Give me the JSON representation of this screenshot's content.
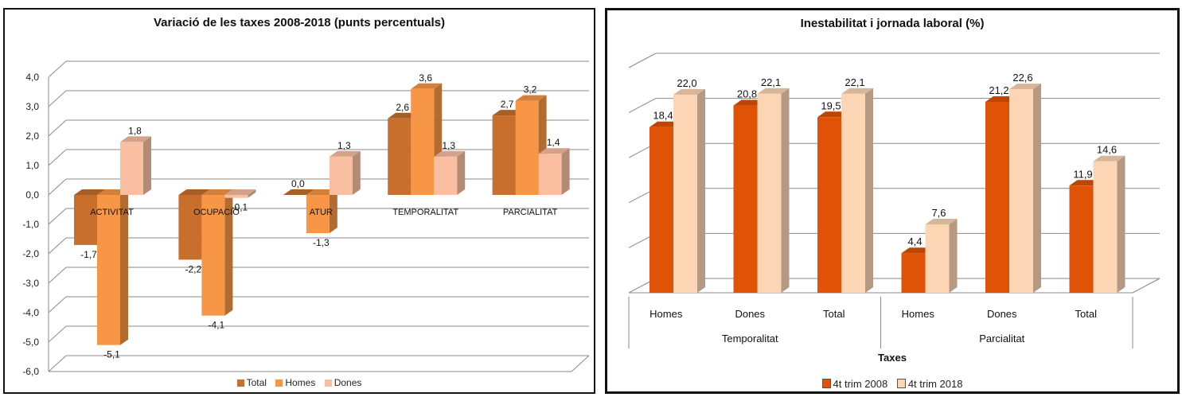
{
  "chart_data": [
    {
      "type": "bar",
      "title": "Variació de les taxes 2008-2018 (punts percentuals)",
      "categories": [
        "ACTIVITAT",
        "OCUPACIÓ",
        "ATUR",
        "TEMPORALITAT",
        "PARCIALITAT"
      ],
      "series": [
        {
          "name": "Total",
          "values": [
            -1.7,
            -2.2,
            0.0,
            2.6,
            2.7
          ],
          "labels": [
            "-1,7",
            "-2,2",
            "0,0",
            "2,6",
            "2,7"
          ],
          "color": "#c86f2e"
        },
        {
          "name": "Homes",
          "values": [
            -5.1,
            -4.1,
            -1.3,
            3.6,
            3.2
          ],
          "labels": [
            "-5,1",
            "-4,1",
            "-1,3",
            "3,6",
            "3,2"
          ],
          "color": "#f79646"
        },
        {
          "name": "Dones",
          "values": [
            1.8,
            -0.1,
            1.3,
            1.3,
            1.4
          ],
          "labels": [
            "1,8",
            "-0,1",
            "1,3",
            "1,3",
            "1,4"
          ],
          "color": "#f9bfa0"
        }
      ],
      "ylim": [
        -6,
        4
      ],
      "yticks": [
        "4,0",
        "3,0",
        "2,0",
        "1,0",
        "0,0",
        "-1,0",
        "-2,0",
        "-3,0",
        "-4,0",
        "-5,0",
        "-6,0"
      ],
      "xlabel": "",
      "ylabel": "",
      "grid": true,
      "legend": "bottom"
    },
    {
      "type": "bar",
      "title": "Inestabilitat i jornada laboral (%)",
      "categories": [
        "Homes",
        "Dones",
        "Total",
        "Homes",
        "Dones",
        "Total"
      ],
      "groups": [
        {
          "label": "Temporalitat",
          "span": 3
        },
        {
          "label": "Parcialitat",
          "span": 3
        }
      ],
      "series": [
        {
          "name": "4t trim 2008",
          "values": [
            18.4,
            20.8,
            19.5,
            4.4,
            21.2,
            11.9
          ],
          "labels": [
            "18,4",
            "20,8",
            "19,5",
            "4,4",
            "21,2",
            "11,9"
          ],
          "color": "#e05206"
        },
        {
          "name": "4t trim 2018",
          "values": [
            22.0,
            22.1,
            22.1,
            7.6,
            22.6,
            14.6
          ],
          "labels": [
            "22,0",
            "22,1",
            "22,1",
            "7,6",
            "22,6",
            "14,6"
          ],
          "color": "#fcd5b4"
        }
      ],
      "ylim": [
        0,
        25
      ],
      "xlabel": "Taxes",
      "ylabel": "",
      "grid": true,
      "legend": "bottom"
    }
  ]
}
